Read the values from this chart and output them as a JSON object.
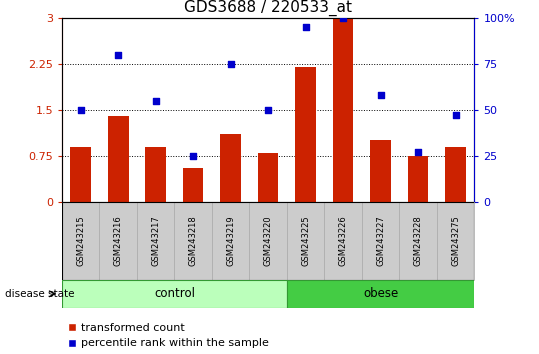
{
  "title": "GDS3688 / 220533_at",
  "samples": [
    "GSM243215",
    "GSM243216",
    "GSM243217",
    "GSM243218",
    "GSM243219",
    "GSM243220",
    "GSM243225",
    "GSM243226",
    "GSM243227",
    "GSM243228",
    "GSM243275"
  ],
  "transformed_count": [
    0.9,
    1.4,
    0.9,
    0.55,
    1.1,
    0.8,
    2.2,
    3.0,
    1.0,
    0.75,
    0.9
  ],
  "percentile_rank": [
    50,
    80,
    55,
    25,
    75,
    50,
    95,
    100,
    58,
    27,
    47
  ],
  "bar_color": "#cc2200",
  "dot_color": "#0000cc",
  "ylim_left": [
    0,
    3
  ],
  "ylim_right": [
    0,
    100
  ],
  "yticks_left": [
    0,
    0.75,
    1.5,
    2.25,
    3
  ],
  "yticks_right": [
    0,
    25,
    50,
    75,
    100
  ],
  "ctrl_count": 6,
  "obese_count": 5,
  "ctrl_color": "#bbffbb",
  "obese_color": "#44cc44",
  "group_border_color": "#339933",
  "label_bg_color": "#cccccc",
  "label_border_color": "#aaaaaa",
  "group_label": "disease state",
  "ctrl_label": "control",
  "obese_label": "obese",
  "legend_bar_label": "transformed count",
  "legend_dot_label": "percentile rank within the sample",
  "title_fontsize": 11,
  "tick_fontsize": 8,
  "sample_fontsize": 6,
  "legend_fontsize": 8
}
